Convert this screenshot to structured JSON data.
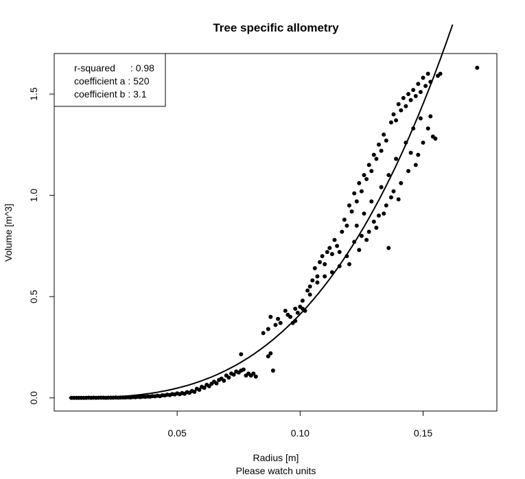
{
  "chart_data": {
    "type": "scatter",
    "title": "Tree specific allometry",
    "xlabel": "Radius [m]",
    "xlabel_sub": "Please watch units",
    "ylabel": "Volume [m^3]",
    "xlim": [
      0.0,
      0.18
    ],
    "ylim": [
      -0.065,
      1.7
    ],
    "xticks": [
      0.05,
      0.1,
      0.15
    ],
    "xtick_labels": [
      "0.05",
      "0.10",
      "0.15"
    ],
    "yticks": [
      0.0,
      0.5,
      1.0,
      1.5
    ],
    "ytick_labels": [
      "0.0",
      "0.5",
      "1.0",
      "1.5"
    ],
    "grid": false,
    "legend": {
      "placement": "top-left",
      "lines": [
        {
          "label": "r-squared",
          "sep": ": ",
          "value": "0.98"
        },
        {
          "label": "coefficient a",
          "sep": " : ",
          "value": "520"
        },
        {
          "label": "coefficient b",
          "sep": " : ",
          "value": "3.1"
        }
      ]
    },
    "fit": {
      "model": "power",
      "a": 520,
      "b": 3.1,
      "x_range": [
        0.006,
        0.162
      ]
    },
    "points": [
      [
        0.007,
        0.0
      ],
      [
        0.008,
        0.0
      ],
      [
        0.009,
        0.0
      ],
      [
        0.01,
        0.0
      ],
      [
        0.011,
        0.0
      ],
      [
        0.012,
        0.0
      ],
      [
        0.013,
        0.0
      ],
      [
        0.014,
        0.001
      ],
      [
        0.015,
        0.0
      ],
      [
        0.016,
        0.001
      ],
      [
        0.017,
        0.0
      ],
      [
        0.018,
        0.001
      ],
      [
        0.019,
        0.001
      ],
      [
        0.02,
        0.001
      ],
      [
        0.021,
        0.0
      ],
      [
        0.022,
        0.001
      ],
      [
        0.023,
        0.001
      ],
      [
        0.024,
        0.001
      ],
      [
        0.025,
        0.002
      ],
      [
        0.026,
        0.001
      ],
      [
        0.027,
        0.002
      ],
      [
        0.028,
        0.002
      ],
      [
        0.029,
        0.002
      ],
      [
        0.03,
        0.003
      ],
      [
        0.031,
        0.002
      ],
      [
        0.032,
        0.004
      ],
      [
        0.033,
        0.003
      ],
      [
        0.034,
        0.005
      ],
      [
        0.035,
        0.004
      ],
      [
        0.036,
        0.006
      ],
      [
        0.037,
        0.005
      ],
      [
        0.038,
        0.007
      ],
      [
        0.039,
        0.006
      ],
      [
        0.04,
        0.009
      ],
      [
        0.041,
        0.008
      ],
      [
        0.042,
        0.011
      ],
      [
        0.043,
        0.009
      ],
      [
        0.044,
        0.013
      ],
      [
        0.045,
        0.012
      ],
      [
        0.046,
        0.016
      ],
      [
        0.047,
        0.014
      ],
      [
        0.048,
        0.019
      ],
      [
        0.049,
        0.017
      ],
      [
        0.05,
        0.022
      ],
      [
        0.051,
        0.018
      ],
      [
        0.052,
        0.024
      ],
      [
        0.053,
        0.02
      ],
      [
        0.054,
        0.028
      ],
      [
        0.055,
        0.025
      ],
      [
        0.056,
        0.034
      ],
      [
        0.057,
        0.03
      ],
      [
        0.058,
        0.045
      ],
      [
        0.059,
        0.04
      ],
      [
        0.06,
        0.055
      ],
      [
        0.061,
        0.05
      ],
      [
        0.062,
        0.065
      ],
      [
        0.063,
        0.058
      ],
      [
        0.064,
        0.07
      ],
      [
        0.065,
        0.08
      ],
      [
        0.066,
        0.072
      ],
      [
        0.067,
        0.088
      ],
      [
        0.068,
        0.095
      ],
      [
        0.069,
        0.085
      ],
      [
        0.07,
        0.11
      ],
      [
        0.071,
        0.1
      ],
      [
        0.072,
        0.12
      ],
      [
        0.073,
        0.115
      ],
      [
        0.074,
        0.13
      ],
      [
        0.075,
        0.125
      ],
      [
        0.076,
        0.135
      ],
      [
        0.077,
        0.14
      ],
      [
        0.078,
        0.11
      ],
      [
        0.079,
        0.12
      ],
      [
        0.08,
        0.11
      ],
      [
        0.081,
        0.12
      ],
      [
        0.082,
        0.105
      ],
      [
        0.076,
        0.215
      ],
      [
        0.087,
        0.205
      ],
      [
        0.088,
        0.22
      ],
      [
        0.089,
        0.135
      ],
      [
        0.088,
        0.4
      ],
      [
        0.091,
        0.39
      ],
      [
        0.094,
        0.43
      ],
      [
        0.095,
        0.41
      ],
      [
        0.097,
        0.37
      ],
      [
        0.098,
        0.38
      ],
      [
        0.099,
        0.42
      ],
      [
        0.1,
        0.45
      ],
      [
        0.101,
        0.44
      ],
      [
        0.102,
        0.43
      ],
      [
        0.103,
        0.53
      ],
      [
        0.104,
        0.55
      ],
      [
        0.105,
        0.58
      ],
      [
        0.106,
        0.64
      ],
      [
        0.107,
        0.6
      ],
      [
        0.108,
        0.67
      ],
      [
        0.109,
        0.7
      ],
      [
        0.11,
        0.66
      ],
      [
        0.111,
        0.72
      ],
      [
        0.112,
        0.74
      ],
      [
        0.113,
        0.71
      ],
      [
        0.114,
        0.78
      ],
      [
        0.115,
        0.75
      ],
      [
        0.116,
        0.72
      ],
      [
        0.117,
        0.82
      ],
      [
        0.118,
        0.88
      ],
      [
        0.119,
        0.85
      ],
      [
        0.12,
        0.95
      ],
      [
        0.121,
        0.92
      ],
      [
        0.122,
        1.01
      ],
      [
        0.123,
        0.97
      ],
      [
        0.124,
        1.06
      ],
      [
        0.125,
        1.02
      ],
      [
        0.126,
        1.1
      ],
      [
        0.127,
        1.08
      ],
      [
        0.128,
        1.15
      ],
      [
        0.129,
        1.12
      ],
      [
        0.13,
        1.2
      ],
      [
        0.131,
        1.18
      ],
      [
        0.132,
        1.25
      ],
      [
        0.133,
        1.22
      ],
      [
        0.134,
        1.3
      ],
      [
        0.135,
        1.27
      ],
      [
        0.136,
        0.74
      ],
      [
        0.137,
        1.36
      ],
      [
        0.138,
        1.4
      ],
      [
        0.139,
        1.37
      ],
      [
        0.14,
        1.45
      ],
      [
        0.141,
        1.42
      ],
      [
        0.142,
        1.48
      ],
      [
        0.143,
        1.44
      ],
      [
        0.144,
        1.5
      ],
      [
        0.145,
        1.47
      ],
      [
        0.146,
        1.52
      ],
      [
        0.147,
        1.49
      ],
      [
        0.148,
        1.55
      ],
      [
        0.149,
        1.51
      ],
      [
        0.15,
        1.58
      ],
      [
        0.151,
        1.54
      ],
      [
        0.152,
        1.6
      ],
      [
        0.153,
        1.56
      ],
      [
        0.154,
        1.29
      ],
      [
        0.155,
        1.28
      ],
      [
        0.156,
        1.59
      ],
      [
        0.157,
        1.6
      ],
      [
        0.172,
        1.63
      ],
      [
        0.147,
        1.15
      ],
      [
        0.145,
        1.21
      ],
      [
        0.14,
        0.98
      ],
      [
        0.138,
        1.02
      ],
      [
        0.135,
        0.95
      ],
      [
        0.132,
        0.9
      ],
      [
        0.13,
        0.87
      ],
      [
        0.128,
        0.82
      ],
      [
        0.125,
        0.8
      ],
      [
        0.122,
        0.77
      ],
      [
        0.119,
        0.7
      ],
      [
        0.116,
        0.65
      ],
      [
        0.113,
        0.62
      ],
      [
        0.11,
        0.6
      ],
      [
        0.107,
        0.57
      ],
      [
        0.104,
        0.51
      ],
      [
        0.101,
        0.48
      ],
      [
        0.098,
        0.44
      ],
      [
        0.096,
        0.4
      ],
      [
        0.092,
        0.37
      ],
      [
        0.09,
        0.36
      ],
      [
        0.087,
        0.34
      ],
      [
        0.085,
        0.32
      ],
      [
        0.12,
        0.66
      ],
      [
        0.124,
        0.73
      ],
      [
        0.127,
        0.78
      ],
      [
        0.131,
        0.84
      ],
      [
        0.134,
        0.91
      ],
      [
        0.137,
        0.99
      ],
      [
        0.141,
        1.06
      ],
      [
        0.144,
        1.12
      ],
      [
        0.148,
        1.2
      ],
      [
        0.15,
        1.26
      ],
      [
        0.152,
        1.33
      ],
      [
        0.153,
        1.39
      ],
      [
        0.149,
        1.38
      ],
      [
        0.146,
        1.33
      ],
      [
        0.143,
        1.26
      ],
      [
        0.139,
        1.18
      ],
      [
        0.136,
        1.1
      ],
      [
        0.133,
        1.04
      ],
      [
        0.129,
        0.97
      ],
      [
        0.126,
        0.91
      ],
      [
        0.123,
        0.85
      ]
    ]
  }
}
